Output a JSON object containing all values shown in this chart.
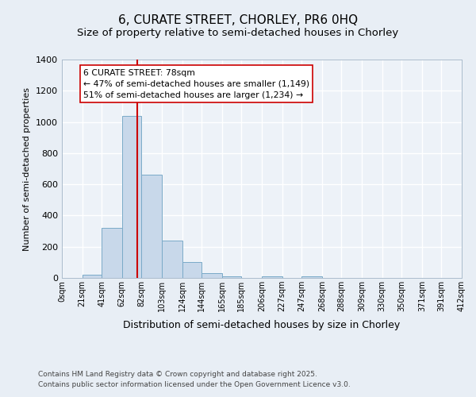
{
  "title_line1": "6, CURATE STREET, CHORLEY, PR6 0HQ",
  "title_line2": "Size of property relative to semi-detached houses in Chorley",
  "xlabel": "Distribution of semi-detached houses by size in Chorley",
  "ylabel": "Number of semi-detached properties",
  "footer_line1": "Contains HM Land Registry data © Crown copyright and database right 2025.",
  "footer_line2": "Contains public sector information licensed under the Open Government Licence v3.0.",
  "bar_edges": [
    0,
    21,
    41,
    62,
    82,
    103,
    124,
    144,
    165,
    185,
    206,
    227,
    247,
    268,
    288,
    309,
    330,
    350,
    371,
    391,
    412
  ],
  "bar_heights": [
    0,
    20,
    320,
    1040,
    660,
    240,
    100,
    30,
    10,
    0,
    10,
    0,
    10,
    0,
    0,
    0,
    0,
    0,
    0,
    0
  ],
  "bar_color": "#c8d8ea",
  "bar_edge_color": "#7aaac8",
  "property_size": 78,
  "property_line_color": "#cc0000",
  "annotation_text": "6 CURATE STREET: 78sqm\n← 47% of semi-detached houses are smaller (1,149)\n51% of semi-detached houses are larger (1,234) →",
  "annotation_box_color": "#ffffff",
  "annotation_border_color": "#cc0000",
  "ylim": [
    0,
    1400
  ],
  "yticks": [
    0,
    200,
    400,
    600,
    800,
    1000,
    1200,
    1400
  ],
  "tick_labels": [
    "0sqm",
    "21sqm",
    "41sqm",
    "62sqm",
    "82sqm",
    "103sqm",
    "124sqm",
    "144sqm",
    "165sqm",
    "185sqm",
    "206sqm",
    "227sqm",
    "247sqm",
    "268sqm",
    "288sqm",
    "309sqm",
    "330sqm",
    "350sqm",
    "371sqm",
    "391sqm",
    "412sqm"
  ],
  "background_color": "#e8eef5",
  "plot_background_color": "#edf2f8",
  "grid_color": "#ffffff",
  "title_fontsize": 11,
  "subtitle_fontsize": 9.5,
  "annotation_fontsize": 7.8
}
